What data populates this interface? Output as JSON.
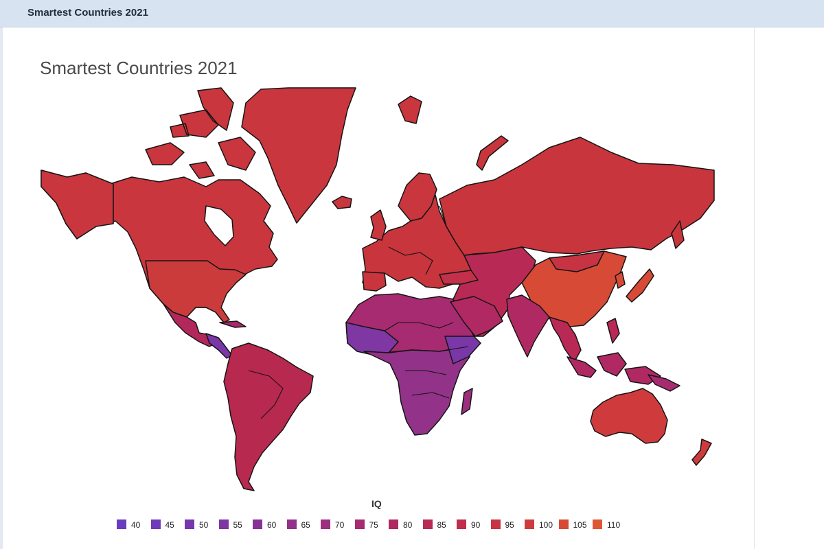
{
  "window": {
    "title": "Smartest Countries 2021"
  },
  "map": {
    "title": "Smartest Countries 2021",
    "legend": {
      "title": "IQ",
      "items": [
        {
          "label": "40",
          "color": "#6a3cc0"
        },
        {
          "label": "45",
          "color": "#6f3bb8"
        },
        {
          "label": "50",
          "color": "#7638ad"
        },
        {
          "label": "55",
          "color": "#7e36a2"
        },
        {
          "label": "60",
          "color": "#873396"
        },
        {
          "label": "65",
          "color": "#92318a"
        },
        {
          "label": "70",
          "color": "#9c2e7d"
        },
        {
          "label": "75",
          "color": "#a62b70"
        },
        {
          "label": "80",
          "color": "#b02962"
        },
        {
          "label": "85",
          "color": "#b82a55"
        },
        {
          "label": "90",
          "color": "#bf2d4b"
        },
        {
          "label": "95",
          "color": "#c73343"
        },
        {
          "label": "100",
          "color": "#cf3b3c"
        },
        {
          "label": "105",
          "color": "#d74a36"
        },
        {
          "label": "110",
          "color": "#dd5832"
        }
      ]
    }
  }
}
